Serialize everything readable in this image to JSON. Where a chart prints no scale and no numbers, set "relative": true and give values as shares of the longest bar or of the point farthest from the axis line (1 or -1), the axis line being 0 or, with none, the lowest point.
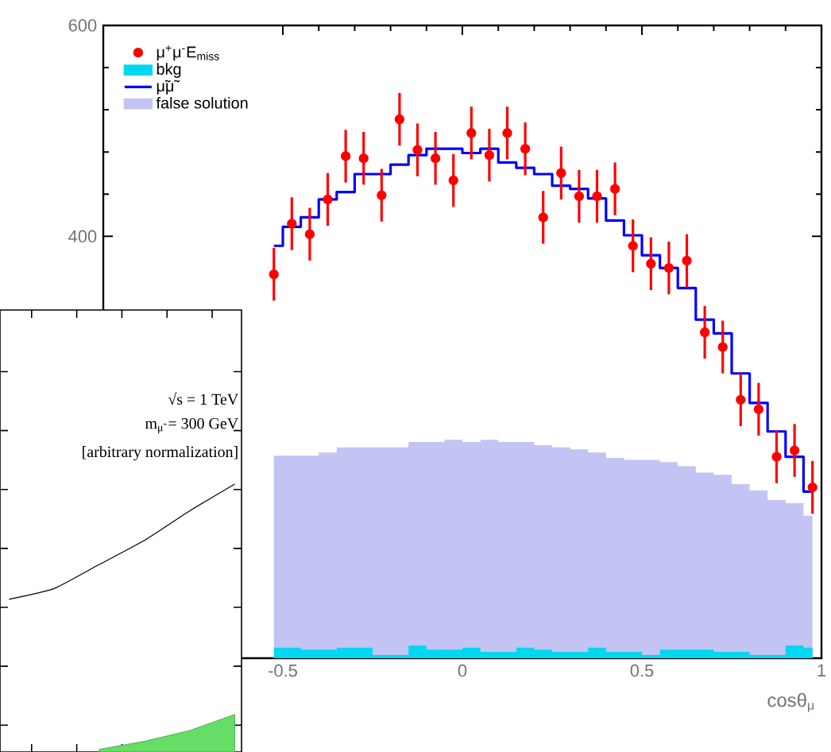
{
  "chart_data": [
    {
      "type": "step",
      "xlabel": "cosθ$_{μ}$",
      "xlim": [
        -1,
        1
      ],
      "xticks": [
        {
          "value": -0.5,
          "label": "-0.5"
        },
        0,
        0.5,
        1
      ],
      "ylim": [
        0,
        600
      ],
      "yticks": [
        400,
        600
      ],
      "legend": "top left",
      "series": [
        {
          "name": "μ$^{+}$μ$^{-}$E$_{miss}$",
          "type": "scatter",
          "marker": "circle",
          "color": "#ff0000",
          "x": [
            -0.525,
            -0.475,
            -0.425,
            -0.375,
            -0.325,
            -0.275,
            -0.225,
            -0.175,
            -0.125,
            -0.075,
            -0.025,
            0.025,
            0.075,
            0.125,
            0.175,
            0.225,
            0.275,
            0.325,
            0.375,
            0.425,
            0.475,
            0.525,
            0.575,
            0.625,
            0.675,
            0.725,
            0.775,
            0.825,
            0.875,
            0.925,
            0.975
          ],
          "values": [
            364,
            412,
            402,
            435,
            476,
            474,
            439,
            511,
            482,
            474,
            453,
            498,
            477,
            498,
            483,
            418,
            460,
            438,
            438,
            445,
            391,
            374,
            370,
            377,
            309,
            295,
            245,
            236,
            191,
            197,
            162
          ],
          "errors": [
            25,
            25,
            25,
            25,
            25,
            25,
            25,
            25,
            25,
            25,
            25,
            25,
            25,
            25,
            25,
            25,
            25,
            25,
            25,
            25,
            25,
            25,
            25,
            25,
            25,
            25,
            25,
            25,
            25,
            25,
            25
          ]
        },
        {
          "name": "bkg",
          "type": "area",
          "marker": "none",
          "color": "#00d8f0",
          "x": [
            -0.525,
            -0.475,
            -0.425,
            -0.375,
            -0.325,
            -0.275,
            -0.225,
            -0.175,
            -0.125,
            -0.075,
            -0.025,
            0.025,
            0.075,
            0.125,
            0.175,
            0.225,
            0.275,
            0.325,
            0.375,
            0.425,
            0.475,
            0.525,
            0.575,
            0.625,
            0.675,
            0.725,
            0.775,
            0.825,
            0.875,
            0.925,
            0.975
          ],
          "values": [
            10,
            10,
            8,
            8,
            10,
            10,
            3,
            3,
            12,
            8,
            8,
            10,
            6,
            6,
            10,
            8,
            6,
            6,
            10,
            6,
            6,
            3,
            8,
            8,
            8,
            6,
            6,
            3,
            3,
            12,
            10
          ]
        },
        {
          "name": "μ̃μ̃",
          "type": "step",
          "marker": "none",
          "color": "#0000ff",
          "x": [
            -0.525,
            -0.475,
            -0.425,
            -0.375,
            -0.325,
            -0.275,
            -0.225,
            -0.175,
            -0.125,
            -0.075,
            -0.025,
            0.025,
            0.075,
            0.125,
            0.175,
            0.225,
            0.275,
            0.325,
            0.375,
            0.425,
            0.475,
            0.525,
            0.575,
            0.625,
            0.675,
            0.725,
            0.775,
            0.825,
            0.875,
            0.925,
            0.975
          ],
          "values": [
            391,
            409,
            418,
            435,
            442,
            459,
            459,
            468,
            477,
            483,
            483,
            479,
            483,
            470,
            465,
            459,
            448,
            445,
            436,
            415,
            401,
            382,
            370,
            351,
            321,
            308,
            270,
            242,
            215,
            191,
            158
          ]
        },
        {
          "name": "false solution",
          "type": "area",
          "marker": "none",
          "color": "#c4c4f4",
          "x": [
            -0.525,
            -0.475,
            -0.425,
            -0.375,
            -0.325,
            -0.275,
            -0.225,
            -0.175,
            -0.125,
            -0.075,
            -0.025,
            0.025,
            0.075,
            0.125,
            0.175,
            0.225,
            0.275,
            0.325,
            0.375,
            0.425,
            0.475,
            0.525,
            0.575,
            0.625,
            0.675,
            0.725,
            0.775,
            0.825,
            0.875,
            0.925,
            0.975
          ],
          "values": [
            192,
            192,
            192,
            195,
            200,
            200,
            200,
            200,
            205,
            205,
            207,
            205,
            207,
            205,
            205,
            202,
            200,
            198,
            195,
            190,
            188,
            188,
            186,
            182,
            176,
            174,
            165,
            159,
            150,
            147,
            135
          ]
        }
      ]
    },
    {
      "type": "line",
      "relative": true,
      "tick_labels": false,
      "categories": [
        null,
        null,
        null,
        null,
        null,
        null
      ],
      "annotations": [
        "√s = 1 TeV",
        "m$_{μ̃}$ = 300 GeV",
        "[arbitrary normalization]"
      ],
      "series": [
        {
          "type": "line",
          "color": "#000000",
          "values": [
            0.57,
            0.61,
            0.7,
            0.79,
            0.9,
            1
          ]
        },
        {
          "type": "area",
          "color": "#66dd66",
          "values": [
            null,
            null,
            0.01,
            0.04,
            0.08,
            0.14
          ]
        }
      ]
    }
  ]
}
